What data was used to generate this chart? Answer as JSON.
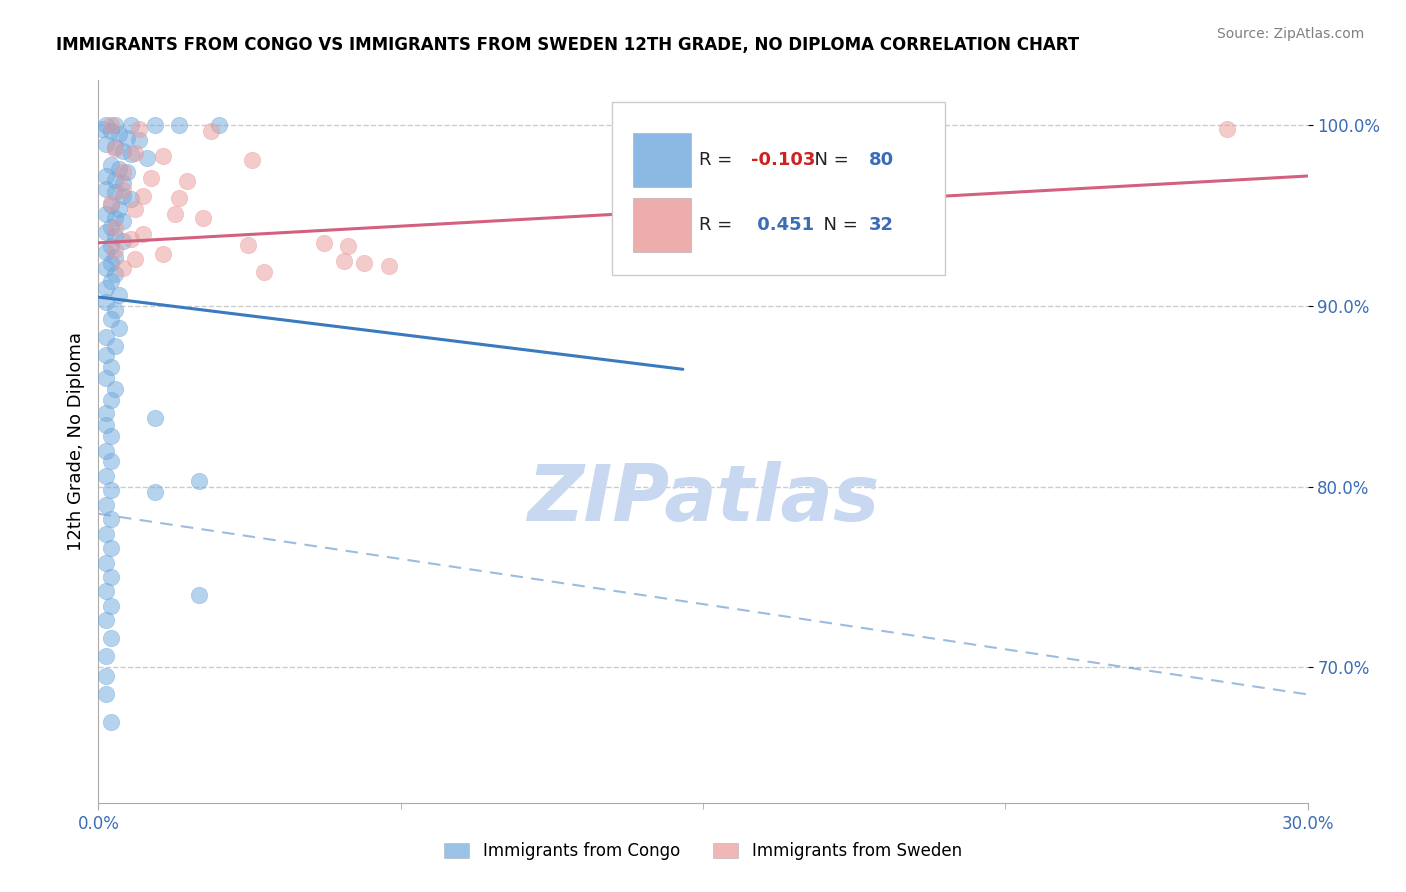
{
  "title": "IMMIGRANTS FROM CONGO VS IMMIGRANTS FROM SWEDEN 12TH GRADE, NO DIPLOMA CORRELATION CHART",
  "source": "Source: ZipAtlas.com",
  "xlabel_congo": "Immigrants from Congo",
  "xlabel_sweden": "Immigrants from Sweden",
  "ylabel": "12th Grade, No Diploma",
  "xlim": [
    0.0,
    0.3
  ],
  "ylim": [
    0.625,
    1.025
  ],
  "yticks": [
    0.7,
    0.8,
    0.9,
    1.0
  ],
  "ytick_labels": [
    "70.0%",
    "80.0%",
    "90.0%",
    "100.0%"
  ],
  "xticks": [
    0.0,
    0.3
  ],
  "xtick_labels": [
    "0.0%",
    "30.0%"
  ],
  "congo_color": "#6fa8dc",
  "sweden_color": "#ea9999",
  "congo_line_color": "#3a7abf",
  "sweden_line_color": "#d46080",
  "congo_R": -0.103,
  "congo_N": 80,
  "sweden_R": 0.451,
  "sweden_N": 32,
  "watermark": "ZIPatlas",
  "watermark_color": "#c8d8f0",
  "congo_line_x": [
    0.0,
    0.145
  ],
  "congo_line_y": [
    0.905,
    0.865
  ],
  "sweden_line_x": [
    0.0,
    0.3
  ],
  "sweden_line_y": [
    0.935,
    0.972
  ],
  "dashed_line_x": [
    0.0,
    0.3
  ],
  "dashed_line_y": [
    0.785,
    0.685
  ],
  "congo_dots": [
    [
      0.002,
      1.0
    ],
    [
      0.004,
      1.0
    ],
    [
      0.008,
      1.0
    ],
    [
      0.014,
      1.0
    ],
    [
      0.02,
      1.0
    ],
    [
      0.03,
      1.0
    ],
    [
      0.001,
      0.998
    ],
    [
      0.003,
      0.997
    ],
    [
      0.005,
      0.995
    ],
    [
      0.007,
      0.993
    ],
    [
      0.01,
      0.992
    ],
    [
      0.002,
      0.99
    ],
    [
      0.004,
      0.988
    ],
    [
      0.006,
      0.986
    ],
    [
      0.008,
      0.984
    ],
    [
      0.012,
      0.982
    ],
    [
      0.003,
      0.978
    ],
    [
      0.005,
      0.976
    ],
    [
      0.007,
      0.974
    ],
    [
      0.002,
      0.972
    ],
    [
      0.004,
      0.97
    ],
    [
      0.006,
      0.968
    ],
    [
      0.002,
      0.965
    ],
    [
      0.004,
      0.963
    ],
    [
      0.006,
      0.961
    ],
    [
      0.008,
      0.959
    ],
    [
      0.003,
      0.956
    ],
    [
      0.005,
      0.954
    ],
    [
      0.002,
      0.951
    ],
    [
      0.004,
      0.949
    ],
    [
      0.006,
      0.947
    ],
    [
      0.003,
      0.944
    ],
    [
      0.002,
      0.941
    ],
    [
      0.004,
      0.939
    ],
    [
      0.006,
      0.936
    ],
    [
      0.003,
      0.933
    ],
    [
      0.002,
      0.93
    ],
    [
      0.004,
      0.927
    ],
    [
      0.003,
      0.924
    ],
    [
      0.002,
      0.921
    ],
    [
      0.004,
      0.918
    ],
    [
      0.003,
      0.914
    ],
    [
      0.002,
      0.91
    ],
    [
      0.005,
      0.906
    ],
    [
      0.002,
      0.902
    ],
    [
      0.004,
      0.898
    ],
    [
      0.003,
      0.893
    ],
    [
      0.005,
      0.888
    ],
    [
      0.002,
      0.883
    ],
    [
      0.004,
      0.878
    ],
    [
      0.002,
      0.873
    ],
    [
      0.003,
      0.866
    ],
    [
      0.002,
      0.86
    ],
    [
      0.004,
      0.854
    ],
    [
      0.003,
      0.848
    ],
    [
      0.002,
      0.841
    ],
    [
      0.014,
      0.838
    ],
    [
      0.002,
      0.834
    ],
    [
      0.003,
      0.828
    ],
    [
      0.002,
      0.82
    ],
    [
      0.003,
      0.814
    ],
    [
      0.002,
      0.806
    ],
    [
      0.003,
      0.798
    ],
    [
      0.002,
      0.79
    ],
    [
      0.003,
      0.782
    ],
    [
      0.002,
      0.774
    ],
    [
      0.003,
      0.766
    ],
    [
      0.002,
      0.758
    ],
    [
      0.003,
      0.75
    ],
    [
      0.002,
      0.742
    ],
    [
      0.003,
      0.734
    ],
    [
      0.002,
      0.726
    ],
    [
      0.003,
      0.716
    ],
    [
      0.002,
      0.706
    ],
    [
      0.025,
      0.803
    ],
    [
      0.014,
      0.797
    ],
    [
      0.002,
      0.695
    ],
    [
      0.025,
      0.74
    ],
    [
      0.002,
      0.685
    ],
    [
      0.003,
      0.67
    ]
  ],
  "sweden_dots": [
    [
      0.003,
      1.0
    ],
    [
      0.01,
      0.998
    ],
    [
      0.028,
      0.997
    ],
    [
      0.28,
      0.998
    ],
    [
      0.004,
      0.987
    ],
    [
      0.009,
      0.985
    ],
    [
      0.016,
      0.983
    ],
    [
      0.038,
      0.981
    ],
    [
      0.006,
      0.974
    ],
    [
      0.013,
      0.971
    ],
    [
      0.022,
      0.969
    ],
    [
      0.006,
      0.964
    ],
    [
      0.011,
      0.961
    ],
    [
      0.003,
      0.957
    ],
    [
      0.009,
      0.954
    ],
    [
      0.019,
      0.951
    ],
    [
      0.026,
      0.949
    ],
    [
      0.004,
      0.943
    ],
    [
      0.011,
      0.94
    ],
    [
      0.008,
      0.937
    ],
    [
      0.056,
      0.935
    ],
    [
      0.037,
      0.934
    ],
    [
      0.062,
      0.933
    ],
    [
      0.004,
      0.931
    ],
    [
      0.016,
      0.929
    ],
    [
      0.009,
      0.926
    ],
    [
      0.061,
      0.925
    ],
    [
      0.066,
      0.924
    ],
    [
      0.006,
      0.921
    ],
    [
      0.072,
      0.922
    ],
    [
      0.041,
      0.919
    ],
    [
      0.02,
      0.96
    ]
  ]
}
